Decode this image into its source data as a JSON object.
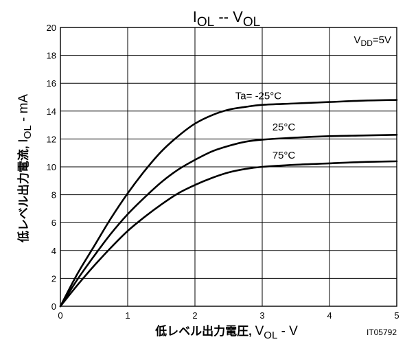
{
  "chart_data": {
    "type": "line",
    "title": {
      "main": "I",
      "main_sub": "OL",
      "sep": " -- ",
      "second": "V",
      "second_sub": "OL"
    },
    "xlabel": {
      "jp": "低レベル出力電圧,",
      "sym": "V",
      "sym_sub": "OL",
      "unit": " - V"
    },
    "ylabel": {
      "jp": "低レベル出力電流,",
      "sym": "I",
      "sym_sub": "OL",
      "unit": " - mA"
    },
    "condition": {
      "sym": "V",
      "sym_sub": "DD",
      "value": "=5V"
    },
    "code": "IT05792",
    "xlim": [
      0,
      5
    ],
    "ylim": [
      0,
      20
    ],
    "xticks": [
      "0",
      "1",
      "2",
      "3",
      "4",
      "5"
    ],
    "yticks": [
      "0",
      "2",
      "4",
      "6",
      "8",
      "10",
      "12",
      "14",
      "16",
      "18",
      "20"
    ],
    "grid": true,
    "series": [
      {
        "name": "Ta= -25°C",
        "label_at": [
          2.6,
          14.85
        ],
        "x": [
          0,
          0.25,
          0.5,
          0.75,
          1.0,
          1.25,
          1.5,
          1.75,
          2.0,
          2.25,
          2.5,
          2.75,
          3.0,
          3.5,
          4.0,
          4.5,
          5.0
        ],
        "y": [
          0,
          2.3,
          4.3,
          6.3,
          8.1,
          9.7,
          11.1,
          12.2,
          13.1,
          13.7,
          14.1,
          14.3,
          14.45,
          14.55,
          14.65,
          14.75,
          14.8
        ]
      },
      {
        "name": "25°C",
        "label_at": [
          3.15,
          12.6
        ],
        "x": [
          0,
          0.25,
          0.5,
          0.75,
          1.0,
          1.25,
          1.5,
          1.75,
          2.0,
          2.25,
          2.5,
          2.75,
          3.0,
          3.5,
          4.0,
          4.5,
          5.0
        ],
        "y": [
          0,
          1.9,
          3.6,
          5.2,
          6.6,
          7.8,
          8.9,
          9.8,
          10.5,
          11.1,
          11.5,
          11.8,
          11.95,
          12.1,
          12.2,
          12.25,
          12.3
        ]
      },
      {
        "name": "75°C",
        "label_at": [
          3.15,
          10.6
        ],
        "x": [
          0,
          0.25,
          0.5,
          0.75,
          1.0,
          1.25,
          1.5,
          1.75,
          2.0,
          2.25,
          2.5,
          2.75,
          3.0,
          3.5,
          4.0,
          4.5,
          5.0
        ],
        "y": [
          0,
          1.5,
          2.9,
          4.2,
          5.4,
          6.4,
          7.3,
          8.1,
          8.7,
          9.2,
          9.6,
          9.85,
          10.0,
          10.15,
          10.25,
          10.35,
          10.4
        ]
      }
    ]
  }
}
